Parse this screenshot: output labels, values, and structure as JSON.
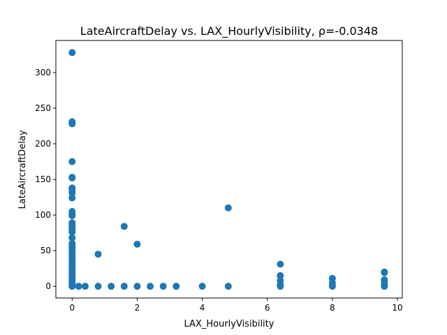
{
  "chart_data": {
    "type": "scatter",
    "title": "LateAircraftDelay vs. LAX_HourlyVisibility, ρ=-0.0348",
    "xlabel": "LAX_HourlyVisibility",
    "ylabel": "LateAircraftDelay",
    "xlim": [
      -0.5,
      10.15
    ],
    "ylim": [
      -16.5,
      345
    ],
    "xticks": [
      0,
      2,
      4,
      6,
      8,
      10
    ],
    "yticks": [
      0,
      50,
      100,
      150,
      200,
      250,
      300
    ],
    "grid": false,
    "legend": "none",
    "marker_color": "#1f77b4",
    "points": [
      [
        0,
        328
      ],
      [
        0,
        231
      ],
      [
        0,
        228
      ],
      [
        0,
        175
      ],
      [
        0,
        153
      ],
      [
        0,
        152
      ],
      [
        0,
        138
      ],
      [
        0,
        135
      ],
      [
        0,
        131
      ],
      [
        0,
        124
      ],
      [
        0,
        105
      ],
      [
        0,
        101
      ],
      [
        0,
        99
      ],
      [
        0,
        89
      ],
      [
        0,
        86
      ],
      [
        0,
        83
      ],
      [
        0,
        80
      ],
      [
        0,
        76
      ],
      [
        0,
        68
      ],
      [
        0,
        60
      ],
      [
        0,
        57
      ],
      [
        0,
        54
      ],
      [
        0,
        50
      ],
      [
        0,
        46
      ],
      [
        0,
        42
      ],
      [
        0,
        38
      ],
      [
        0,
        34
      ],
      [
        0,
        30
      ],
      [
        0,
        26
      ],
      [
        0,
        22
      ],
      [
        0,
        18
      ],
      [
        0,
        14
      ],
      [
        0,
        10
      ],
      [
        0,
        7
      ],
      [
        0,
        4
      ],
      [
        0,
        2
      ],
      [
        0,
        0
      ],
      [
        0.2,
        0
      ],
      [
        0.4,
        0
      ],
      [
        0.8,
        45
      ],
      [
        0.8,
        0
      ],
      [
        1.2,
        0
      ],
      [
        1.6,
        84
      ],
      [
        1.6,
        0
      ],
      [
        2.0,
        59
      ],
      [
        2.0,
        0
      ],
      [
        2.4,
        0
      ],
      [
        2.8,
        0
      ],
      [
        3.2,
        0
      ],
      [
        4.0,
        0
      ],
      [
        4.8,
        110
      ],
      [
        4.8,
        0
      ],
      [
        6.4,
        31
      ],
      [
        6.4,
        15
      ],
      [
        6.4,
        8
      ],
      [
        6.4,
        2
      ],
      [
        6.4,
        0
      ],
      [
        8.0,
        11
      ],
      [
        8.0,
        5
      ],
      [
        8.0,
        1
      ],
      [
        8.0,
        0
      ],
      [
        9.6,
        20
      ],
      [
        9.6,
        19
      ],
      [
        9.6,
        9
      ],
      [
        9.6,
        4
      ],
      [
        9.6,
        1
      ],
      [
        9.6,
        0
      ]
    ]
  }
}
